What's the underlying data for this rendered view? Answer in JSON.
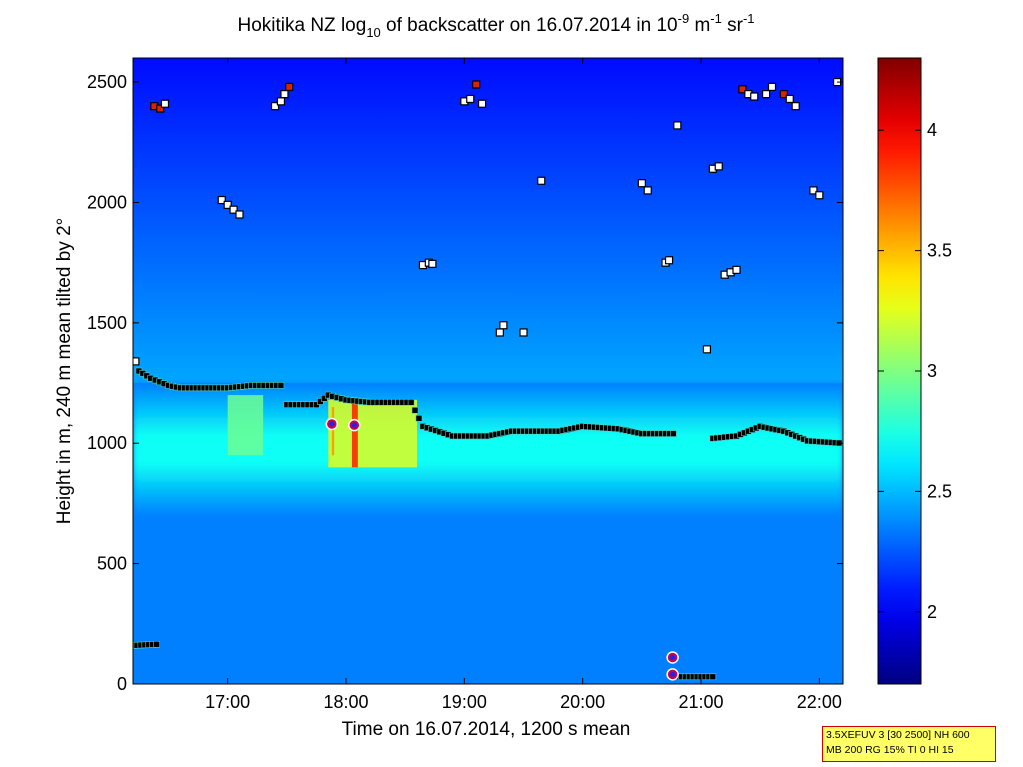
{
  "chart_data": {
    "type": "heatmap",
    "title": "Hokitika NZ log10 of backscatter on 16.07.2014 in 10-9 m-1 sr-1",
    "title_parts": {
      "prefix": "Hokitika NZ log",
      "log_sub": "10",
      "mid": " of backscatter on 16.07.2014 in 10",
      "exp1": "-9",
      "unit1": " m",
      "exp2": "-1",
      "unit2": " sr",
      "exp3": "-1"
    },
    "xlabel": "Time on 16.07.2014, 1200 s mean",
    "ylabel": "Height in m, 240 m mean tilted by 2°",
    "x_range_hours": [
      16.2,
      22.2
    ],
    "ylim": [
      0,
      2600
    ],
    "x_ticks": [
      {
        "value": 17,
        "label": "17:00"
      },
      {
        "value": 18,
        "label": "18:00"
      },
      {
        "value": 19,
        "label": "19:00"
      },
      {
        "value": 20,
        "label": "20:00"
      },
      {
        "value": 21,
        "label": "21:00"
      },
      {
        "value": 22,
        "label": "22:00"
      }
    ],
    "y_ticks": [
      {
        "value": 0,
        "label": "0"
      },
      {
        "value": 500,
        "label": "500"
      },
      {
        "value": 1000,
        "label": "1000"
      },
      {
        "value": 1500,
        "label": "1500"
      },
      {
        "value": 2000,
        "label": "2000"
      },
      {
        "value": 2500,
        "label": "2500"
      }
    ],
    "colorbar": {
      "range": [
        1.7,
        4.3
      ],
      "ticks": [
        {
          "value": 2,
          "label": "2"
        },
        {
          "value": 2.5,
          "label": "2.5"
        },
        {
          "value": 3,
          "label": "3"
        },
        {
          "value": 3.5,
          "label": "3.5"
        },
        {
          "value": 4,
          "label": "4"
        }
      ],
      "colormap": "jet"
    },
    "field": {
      "background_value": 2.35,
      "upper_value": 2.05,
      "layer": {
        "bottom": 700,
        "top": 1250,
        "center": 1000,
        "value": 2.7
      },
      "bands": [
        {
          "x0": 17.0,
          "x1": 17.3,
          "y0": 950,
          "y1": 1200,
          "value": 2.95
        },
        {
          "x0": 17.85,
          "x1": 18.6,
          "y0": 900,
          "y1": 1180,
          "value": 3.25
        },
        {
          "x0": 18.05,
          "x1": 18.1,
          "y0": 900,
          "y1": 1180,
          "value": 3.9
        },
        {
          "x0": 17.88,
          "x1": 17.9,
          "y0": 950,
          "y1": 1150,
          "value": 3.6
        }
      ]
    },
    "cloud_base_line": [
      [
        16.2,
        1340
      ],
      [
        16.25,
        1300
      ],
      [
        16.35,
        1270
      ],
      [
        16.5,
        1240
      ],
      [
        16.6,
        1230
      ],
      [
        17.0,
        1230
      ],
      [
        17.2,
        1240
      ],
      [
        17.45,
        1240
      ],
      [
        17.5,
        1160
      ],
      [
        17.75,
        1160
      ],
      [
        17.85,
        1200
      ],
      [
        18.0,
        1180
      ],
      [
        18.2,
        1170
      ],
      [
        18.55,
        1170
      ],
      [
        18.65,
        1070
      ],
      [
        18.9,
        1030
      ],
      [
        19.2,
        1030
      ],
      [
        19.4,
        1050
      ],
      [
        19.8,
        1050
      ],
      [
        20.0,
        1070
      ],
      [
        20.3,
        1060
      ],
      [
        20.5,
        1040
      ],
      [
        20.8,
        1040
      ]
    ],
    "cloud_base_line_2": [
      [
        21.1,
        1020
      ],
      [
        21.3,
        1030
      ],
      [
        21.5,
        1070
      ],
      [
        21.7,
        1050
      ],
      [
        21.9,
        1010
      ],
      [
        22.2,
        1000
      ]
    ],
    "low_segments": [
      {
        "points": [
          [
            16.2,
            160
          ],
          [
            16.4,
            165
          ],
          [
            16.45,
            180
          ]
        ]
      },
      {
        "points": [
          [
            20.8,
            30
          ],
          [
            21.1,
            30
          ],
          [
            21.15,
            28
          ]
        ]
      }
    ],
    "scatter_points": [
      [
        16.38,
        2400,
        "red"
      ],
      [
        16.43,
        2390,
        "red"
      ],
      [
        16.47,
        2410,
        "white"
      ],
      [
        17.4,
        2400,
        "white"
      ],
      [
        17.45,
        2420,
        "white"
      ],
      [
        17.48,
        2450,
        "white"
      ],
      [
        17.52,
        2480,
        "red"
      ],
      [
        16.95,
        2010,
        "white"
      ],
      [
        17.0,
        1990,
        "white"
      ],
      [
        17.05,
        1970,
        "white"
      ],
      [
        17.1,
        1950,
        "white"
      ],
      [
        18.65,
        1740,
        "white"
      ],
      [
        18.7,
        1750,
        "white"
      ],
      [
        18.73,
        1745,
        "white"
      ],
      [
        19.0,
        2420,
        "white"
      ],
      [
        19.05,
        2430,
        "white"
      ],
      [
        19.1,
        2490,
        "red"
      ],
      [
        19.15,
        2410,
        "white"
      ],
      [
        19.3,
        1460,
        "white"
      ],
      [
        19.33,
        1490,
        "white"
      ],
      [
        19.5,
        1460,
        "white"
      ],
      [
        19.65,
        2090,
        "white"
      ],
      [
        20.5,
        2080,
        "white"
      ],
      [
        20.55,
        2050,
        "white"
      ],
      [
        20.7,
        1750,
        "white"
      ],
      [
        20.73,
        1760,
        "white"
      ],
      [
        20.8,
        2320,
        "white"
      ],
      [
        21.05,
        1390,
        "white"
      ],
      [
        21.1,
        2140,
        "white"
      ],
      [
        21.15,
        2150,
        "white"
      ],
      [
        21.2,
        1700,
        "white"
      ],
      [
        21.25,
        1710,
        "white"
      ],
      [
        21.3,
        1720,
        "white"
      ],
      [
        21.35,
        2470,
        "red"
      ],
      [
        21.4,
        2450,
        "white"
      ],
      [
        21.45,
        2440,
        "white"
      ],
      [
        21.55,
        2450,
        "white"
      ],
      [
        21.6,
        2480,
        "white"
      ],
      [
        21.7,
        2450,
        "red"
      ],
      [
        21.75,
        2430,
        "white"
      ],
      [
        21.8,
        2400,
        "white"
      ],
      [
        21.95,
        2050,
        "white"
      ],
      [
        22.0,
        2030,
        "white"
      ],
      [
        22.15,
        2500,
        "white"
      ],
      [
        16.22,
        1340,
        "white"
      ]
    ],
    "markers": [
      [
        17.88,
        1080
      ],
      [
        18.07,
        1075
      ],
      [
        20.76,
        110
      ],
      [
        20.76,
        40
      ]
    ]
  },
  "info_box": {
    "line1": "3.5XEFUV 3 [30 2500] NH 600",
    "line2": "MB 200 RG 15% TI 0 HI 15"
  }
}
